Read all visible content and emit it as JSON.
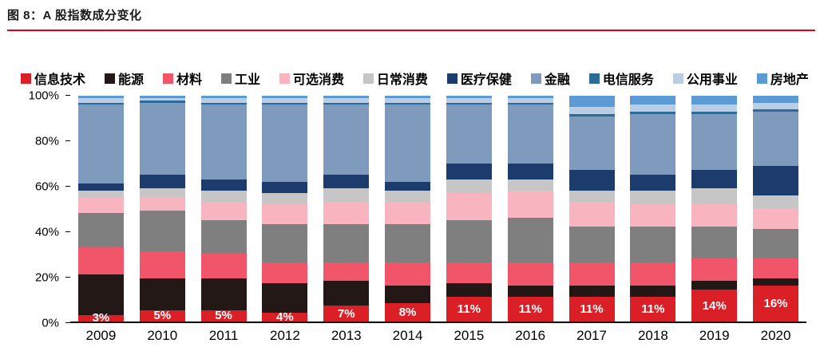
{
  "title": "图 8：A 股指数成分变化",
  "colors": {
    "title_text": "#1a1a1a",
    "title_underline": "#e60012",
    "axis": "#000000",
    "bar_label_text": "#ffffff",
    "background": "#ffffff"
  },
  "chart_data": {
    "type": "bar",
    "variant": "stacked-100-percent",
    "title": "A 股指数成分变化",
    "categories": [
      "2009",
      "2010",
      "2011",
      "2012",
      "2013",
      "2014",
      "2015",
      "2016",
      "2017",
      "2018",
      "2019",
      "2020"
    ],
    "series": [
      {
        "name": "信息技术",
        "color": "#da1f27",
        "values": [
          3,
          5,
          5,
          4,
          7,
          8,
          11,
          11,
          11,
          11,
          14,
          16
        ]
      },
      {
        "name": "能源",
        "color": "#231815",
        "values": [
          18,
          14,
          14,
          13,
          11,
          8,
          6,
          5,
          5,
          5,
          4,
          3
        ]
      },
      {
        "name": "材料",
        "color": "#f0556a",
        "values": [
          12,
          12,
          11,
          9,
          8,
          10,
          9,
          10,
          10,
          10,
          10,
          9
        ]
      },
      {
        "name": "工业",
        "color": "#7f7f7f",
        "values": [
          15,
          18,
          15,
          17,
          17,
          17,
          19,
          20,
          16,
          16,
          14,
          13
        ]
      },
      {
        "name": "可选消费",
        "color": "#f8b5c0",
        "values": [
          7,
          6,
          8,
          9,
          10,
          10,
          12,
          12,
          11,
          10,
          10,
          9
        ]
      },
      {
        "name": "日常消费",
        "color": "#c6c6c6",
        "values": [
          3,
          4,
          5,
          5,
          6,
          5,
          6,
          5,
          5,
          6,
          7,
          6
        ]
      },
      {
        "name": "医疗保健",
        "color": "#1b3c6d",
        "values": [
          3,
          6,
          5,
          5,
          6,
          4,
          7,
          7,
          9,
          7,
          8,
          13
        ]
      },
      {
        "name": "金融",
        "color": "#7e9bbd",
        "values": [
          35,
          32,
          33,
          34,
          31,
          34,
          26,
          26,
          24,
          27,
          25,
          24
        ]
      },
      {
        "name": "电信服务",
        "color": "#2b6a99",
        "values": [
          1,
          1,
          1,
          1,
          1,
          1,
          1,
          1,
          1,
          1,
          1,
          1
        ]
      },
      {
        "name": "公用事业",
        "color": "#b9cde4",
        "values": [
          2,
          1,
          2,
          2,
          2,
          2,
          2,
          2,
          3,
          3,
          3,
          3
        ]
      },
      {
        "name": "房地产",
        "color": "#5b9bd5",
        "values": [
          1,
          1,
          1,
          1,
          1,
          1,
          1,
          1,
          5,
          4,
          4,
          3
        ]
      }
    ],
    "data_labels": {
      "series": "信息技术",
      "values": [
        "3%",
        "5%",
        "5%",
        "4%",
        "7%",
        "8%",
        "11%",
        "11%",
        "11%",
        "11%",
        "14%",
        "16%"
      ]
    },
    "y_ticks": [
      "0%",
      "20%",
      "40%",
      "60%",
      "80%",
      "100%"
    ],
    "ylim": [
      0,
      100
    ],
    "grid": false,
    "legend_position": "top"
  }
}
